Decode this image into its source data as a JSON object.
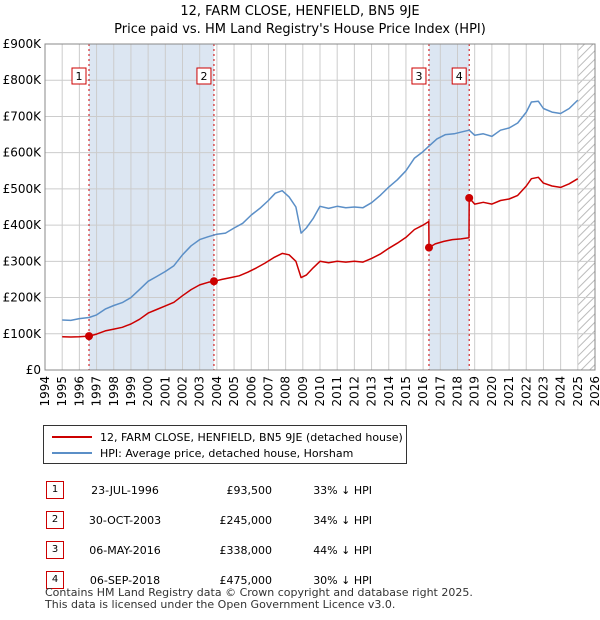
{
  "title": "12, FARM CLOSE, HENFIELD, BN5 9JE",
  "subtitle": "Price paid vs. HM Land Registry's House Price Index (HPI)",
  "legend": {
    "property": "12, FARM CLOSE, HENFIELD, BN5 9JE (detached house)",
    "hpi": "HPI: Average price, detached house, Horsham"
  },
  "colors": {
    "property": "#cc0000",
    "hpi": "#5b8fc7",
    "shade": "#dce6f2",
    "grid": "#cccccc"
  },
  "chart_data": {
    "type": "line",
    "title": "12, FARM CLOSE, HENFIELD, BN5 9JE",
    "xlim": [
      1994,
      2026
    ],
    "ylim": [
      0,
      900000
    ],
    "xticks": [
      "1994",
      "1995",
      "1996",
      "1997",
      "1998",
      "1999",
      "2000",
      "2001",
      "2002",
      "2003",
      "2004",
      "2005",
      "2006",
      "2007",
      "2008",
      "2009",
      "2010",
      "2011",
      "2012",
      "2013",
      "2014",
      "2015",
      "2016",
      "2017",
      "2018",
      "2019",
      "2020",
      "2021",
      "2022",
      "2023",
      "2024",
      "2025",
      "2026"
    ],
    "yticks": [
      {
        "value": 0,
        "label": "£0"
      },
      {
        "value": 100000,
        "label": "£100K"
      },
      {
        "value": 200000,
        "label": "£200K"
      },
      {
        "value": 300000,
        "label": "£300K"
      },
      {
        "value": 400000,
        "label": "£400K"
      },
      {
        "value": 500000,
        "label": "£500K"
      },
      {
        "value": 600000,
        "label": "£600K"
      },
      {
        "value": 700000,
        "label": "£700K"
      },
      {
        "value": 800000,
        "label": "£800K"
      },
      {
        "value": 900000,
        "label": "£900K"
      }
    ],
    "shaded_ranges": [
      [
        1996.56,
        2003.83
      ],
      [
        2016.34,
        2018.68
      ]
    ],
    "forecast_from": 2025.0,
    "series": [
      {
        "name": "HPI: Average price, detached house, Horsham",
        "x": [
          1995,
          1995.5,
          1996,
          1996.56,
          1997,
          1997.5,
          1998,
          1998.5,
          1999,
          1999.5,
          2000,
          2000.5,
          2001,
          2001.5,
          2002,
          2002.5,
          2003,
          2003.5,
          2004,
          2004.5,
          2005,
          2005.5,
          2006,
          2006.5,
          2007,
          2007.4,
          2007.8,
          2008.2,
          2008.6,
          2008.9,
          2009.2,
          2009.6,
          2010,
          2010.5,
          2011,
          2011.5,
          2012,
          2012.5,
          2013,
          2013.5,
          2014,
          2014.5,
          2015,
          2015.5,
          2016,
          2016.34,
          2016.8,
          2017.3,
          2017.8,
          2018.3,
          2018.68,
          2019,
          2019.5,
          2020,
          2020.5,
          2021,
          2021.5,
          2022,
          2022.3,
          2022.7,
          2023,
          2023.5,
          2024,
          2024.5,
          2025
        ],
        "values": [
          138000,
          137000,
          142000,
          145000,
          152000,
          168000,
          178000,
          186000,
          200000,
          222000,
          245000,
          258000,
          272000,
          288000,
          318000,
          343000,
          360000,
          368000,
          375000,
          378000,
          392000,
          405000,
          428000,
          446000,
          468000,
          488000,
          495000,
          478000,
          450000,
          378000,
          392000,
          418000,
          452000,
          446000,
          452000,
          448000,
          450000,
          448000,
          462000,
          482000,
          505000,
          525000,
          550000,
          585000,
          603000,
          618000,
          638000,
          650000,
          652000,
          658000,
          662000,
          648000,
          652000,
          645000,
          662000,
          668000,
          682000,
          712000,
          740000,
          742000,
          722000,
          712000,
          708000,
          722000,
          745000
        ]
      },
      {
        "name": "12, FARM CLOSE, HENFIELD, BN5 9JE (detached house)",
        "x": [
          1995,
          1995.5,
          1996,
          1996.56,
          1997,
          1997.5,
          1998,
          1998.5,
          1999,
          1999.5,
          2000,
          2000.5,
          2001,
          2001.5,
          2002,
          2002.5,
          2003,
          2003.5,
          2003.83,
          2004.3,
          2004.8,
          2005.3,
          2005.8,
          2006.3,
          2006.8,
          2007.3,
          2007.8,
          2008.2,
          2008.6,
          2008.9,
          2009.2,
          2009.6,
          2010,
          2010.5,
          2011,
          2011.5,
          2012,
          2012.5,
          2013,
          2013.5,
          2014,
          2014.5,
          2015,
          2015.5,
          2016,
          2016.33,
          2016.34,
          2016.7,
          2017.2,
          2017.7,
          2018.2,
          2018.67,
          2018.68,
          2019,
          2019.5,
          2020,
          2020.5,
          2021,
          2021.5,
          2022,
          2022.3,
          2022.7,
          2023,
          2023.5,
          2024,
          2024.5,
          2025
        ],
        "values": [
          92000,
          91000,
          92000,
          93500,
          99000,
          108000,
          113000,
          118000,
          127000,
          140000,
          157000,
          167000,
          177000,
          187000,
          205000,
          222000,
          235000,
          242000,
          245000,
          250000,
          255000,
          260000,
          270000,
          282000,
          295000,
          310000,
          322000,
          318000,
          300000,
          255000,
          262000,
          282000,
          300000,
          296000,
          300000,
          298000,
          300000,
          298000,
          308000,
          320000,
          336000,
          350000,
          366000,
          388000,
          400000,
          410000,
          338000,
          348000,
          355000,
          360000,
          362000,
          365000,
          475000,
          458000,
          463000,
          458000,
          468000,
          472000,
          482000,
          508000,
          528000,
          532000,
          516000,
          508000,
          504000,
          514000,
          528000
        ]
      }
    ],
    "sales": [
      {
        "label": "1",
        "x": 1996.56,
        "value": 93500
      },
      {
        "label": "2",
        "x": 2003.83,
        "value": 245000
      },
      {
        "label": "3",
        "x": 2016.34,
        "value": 338000
      },
      {
        "label": "4",
        "x": 2018.68,
        "value": 475000
      }
    ]
  },
  "transactions": [
    {
      "num": "1",
      "date": "23-JUL-1996",
      "price": "£93,500",
      "hpi": "33% ↓ HPI"
    },
    {
      "num": "2",
      "date": "30-OCT-2003",
      "price": "£245,000",
      "hpi": "34% ↓ HPI"
    },
    {
      "num": "3",
      "date": "06-MAY-2016",
      "price": "£338,000",
      "hpi": "44% ↓ HPI"
    },
    {
      "num": "4",
      "date": "06-SEP-2018",
      "price": "£475,000",
      "hpi": "30% ↓ HPI"
    }
  ],
  "footer": {
    "line1": "Contains HM Land Registry data © Crown copyright and database right 2025.",
    "line2": "This data is licensed under the Open Government Licence v3.0."
  }
}
